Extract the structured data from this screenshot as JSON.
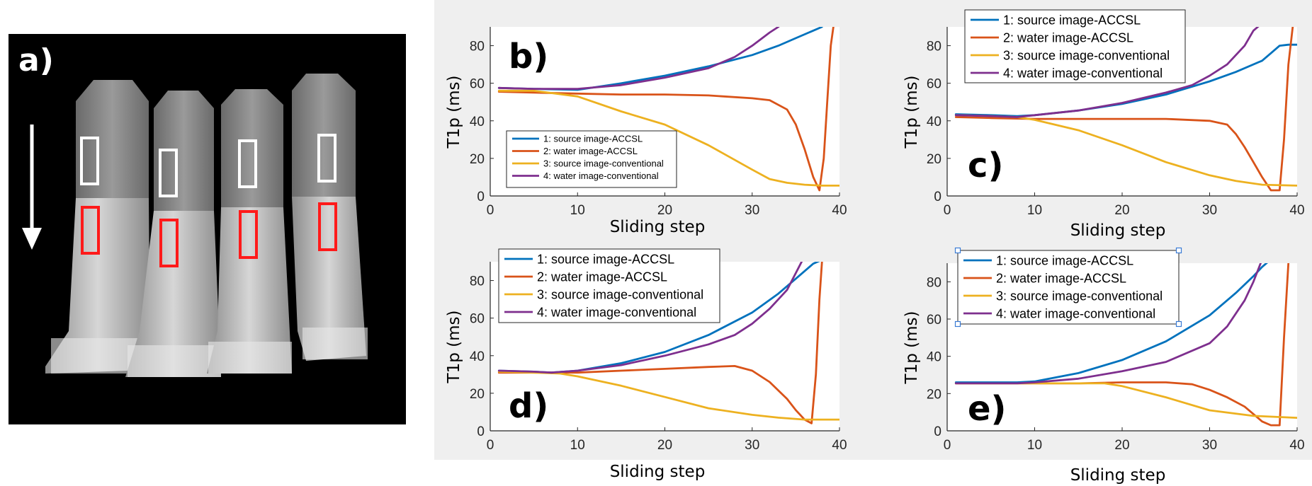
{
  "panel_a": {
    "label": "a)",
    "tubes": 4,
    "colors": {
      "upper_roi": "#ffffff",
      "lower_roi": "#ff1a1a",
      "arrow": "#ffffff"
    }
  },
  "colors": {
    "series1": "#0072BD",
    "series2": "#D95319",
    "series3": "#EDB120",
    "series4": "#7E2F8E"
  },
  "chart_data": [
    {
      "type": "line",
      "panel": "b)",
      "xlabel": "Sliding step",
      "ylabel": "T1p (ms)",
      "xlim": [
        0,
        40
      ],
      "ylim": [
        0,
        90
      ],
      "xticks": [
        0,
        10,
        20,
        30,
        40
      ],
      "yticks": [
        0,
        20,
        40,
        60,
        80
      ],
      "legend_position": "bottom-left",
      "series": [
        {
          "name": "1: source image-ACCSL",
          "x": [
            1,
            5,
            10,
            15,
            20,
            25,
            30,
            33,
            35,
            37,
            38
          ],
          "values": [
            57.5,
            57,
            56.5,
            60,
            64,
            69,
            75,
            80,
            84,
            88,
            90
          ]
        },
        {
          "name": "2: water image-ACCSL",
          "x": [
            1,
            5,
            10,
            15,
            20,
            25,
            30,
            32,
            34,
            35,
            36,
            37,
            37.7,
            38.2,
            38.6,
            39,
            39.3
          ],
          "values": [
            55.5,
            55,
            54.5,
            54,
            54,
            53.5,
            52,
            51,
            46,
            38,
            25,
            10,
            3,
            20,
            50,
            80,
            90
          ]
        },
        {
          "name": "3: source image-conventional",
          "x": [
            1,
            5,
            10,
            15,
            20,
            25,
            30,
            32,
            34,
            36,
            38,
            40
          ],
          "values": [
            56,
            56,
            53,
            45,
            38,
            27,
            14,
            9,
            7,
            6,
            5.5,
            5.5
          ]
        },
        {
          "name": "4: water image-conventional",
          "x": [
            1,
            5,
            10,
            15,
            20,
            25,
            28,
            30,
            32,
            33,
            34
          ],
          "values": [
            57.5,
            57,
            57,
            59,
            63,
            68,
            74,
            80,
            87,
            90,
            95
          ]
        }
      ]
    },
    {
      "type": "line",
      "panel": "c)",
      "xlabel": "Sliding step",
      "ylabel": "T1p (ms)",
      "xlim": [
        0,
        40
      ],
      "ylim": [
        0,
        90
      ],
      "xticks": [
        0,
        10,
        20,
        30,
        40
      ],
      "yticks": [
        0,
        20,
        40,
        60,
        80
      ],
      "legend_position": "top-left",
      "series": [
        {
          "name": "1: source image-ACCSL",
          "x": [
            1,
            5,
            8,
            10,
            15,
            20,
            25,
            30,
            33,
            36,
            37,
            38,
            39,
            40
          ],
          "values": [
            43.5,
            43,
            42.5,
            43,
            45.5,
            49,
            54,
            61,
            66,
            72,
            76,
            80,
            80.5,
            80.5
          ]
        },
        {
          "name": "2: water image-ACCSL",
          "x": [
            1,
            5,
            10,
            15,
            20,
            25,
            30,
            32,
            33,
            34,
            35,
            36,
            37,
            38,
            38.5,
            39,
            39.5
          ],
          "values": [
            42,
            41.5,
            41,
            41,
            41,
            41,
            40,
            38,
            33,
            26,
            18,
            10,
            3,
            3,
            30,
            70,
            90
          ]
        },
        {
          "name": "3: source image-conventional",
          "x": [
            1,
            5,
            8,
            10,
            15,
            20,
            25,
            30,
            33,
            36,
            40
          ],
          "values": [
            43,
            42.5,
            42,
            40.5,
            35,
            27,
            18,
            11,
            8,
            6,
            5.5
          ]
        },
        {
          "name": "4: water image-conventional",
          "x": [
            1,
            5,
            8,
            10,
            15,
            20,
            25,
            28,
            30,
            32,
            34,
            35,
            36
          ],
          "values": [
            43,
            42.5,
            42,
            43,
            45.5,
            49.5,
            55,
            59,
            64,
            70,
            80,
            88,
            92
          ]
        }
      ]
    },
    {
      "type": "line",
      "panel": "d)",
      "xlabel": "Sliding step",
      "ylabel": "T1p (ms)",
      "xlim": [
        0,
        40
      ],
      "ylim": [
        0,
        90
      ],
      "xticks": [
        0,
        10,
        20,
        30,
        40
      ],
      "yticks": [
        0,
        20,
        40,
        60,
        80
      ],
      "legend_position": "top-left",
      "series": [
        {
          "name": "1: source image-ACCSL",
          "x": [
            1,
            5,
            7,
            10,
            15,
            20,
            25,
            30,
            33,
            35,
            37,
            38
          ],
          "values": [
            32,
            31.5,
            31,
            32,
            36,
            42,
            51,
            63,
            73,
            81,
            89,
            91
          ]
        },
        {
          "name": "2: water image-ACCSL",
          "x": [
            1,
            5,
            10,
            15,
            20,
            25,
            28,
            30,
            32,
            34,
            35,
            36,
            36.8,
            37.3,
            37.7,
            38
          ],
          "values": [
            31,
            31,
            31,
            32,
            33,
            34,
            34.5,
            32,
            26,
            17,
            11,
            6,
            4,
            30,
            70,
            90
          ]
        },
        {
          "name": "3: source image-conventional",
          "x": [
            1,
            5,
            8,
            10,
            15,
            20,
            25,
            30,
            33,
            36,
            40
          ],
          "values": [
            31.5,
            31,
            30.5,
            29,
            24,
            18,
            12,
            8.5,
            7,
            6,
            6
          ]
        },
        {
          "name": "4: water image-conventional",
          "x": [
            1,
            5,
            7,
            10,
            15,
            20,
            25,
            28,
            30,
            32,
            34,
            35,
            36
          ],
          "values": [
            32,
            31.5,
            31,
            32,
            35,
            40,
            46,
            51,
            57,
            65,
            75,
            84,
            93
          ]
        }
      ]
    },
    {
      "type": "line",
      "panel": "e)",
      "xlabel": "Sliding step",
      "ylabel": "T1p (ms)",
      "xlim": [
        0,
        40
      ],
      "ylim": [
        0,
        90
      ],
      "xticks": [
        0,
        10,
        20,
        30,
        40
      ],
      "yticks": [
        0,
        20,
        40,
        60,
        80
      ],
      "legend_position": "top-left",
      "series": [
        {
          "name": "1: source image-ACCSL",
          "x": [
            1,
            5,
            8,
            10,
            15,
            20,
            25,
            30,
            33,
            35,
            36,
            37
          ],
          "values": [
            26,
            26,
            26,
            26.5,
            31,
            38,
            48,
            62,
            74,
            83,
            88,
            92
          ]
        },
        {
          "name": "2: water image-ACCSL",
          "x": [
            1,
            5,
            10,
            15,
            20,
            25,
            28,
            30,
            32,
            34,
            35,
            36,
            37,
            38,
            38.5,
            39
          ],
          "values": [
            25.5,
            25.5,
            25.5,
            25.5,
            26,
            26,
            25,
            22,
            18,
            13,
            9,
            5,
            3,
            3,
            50,
            90
          ]
        },
        {
          "name": "3: source image-conventional",
          "x": [
            1,
            5,
            10,
            15,
            18,
            20,
            25,
            30,
            35,
            40
          ],
          "values": [
            25.5,
            25.5,
            25.5,
            25.5,
            25.5,
            24,
            18,
            11,
            8,
            7
          ]
        },
        {
          "name": "4: water image-conventional",
          "x": [
            1,
            5,
            8,
            10,
            15,
            20,
            25,
            30,
            32,
            34,
            35,
            36
          ],
          "values": [
            25.5,
            25.5,
            25.5,
            26,
            28,
            32,
            37,
            47,
            56,
            70,
            80,
            92
          ]
        }
      ]
    }
  ]
}
